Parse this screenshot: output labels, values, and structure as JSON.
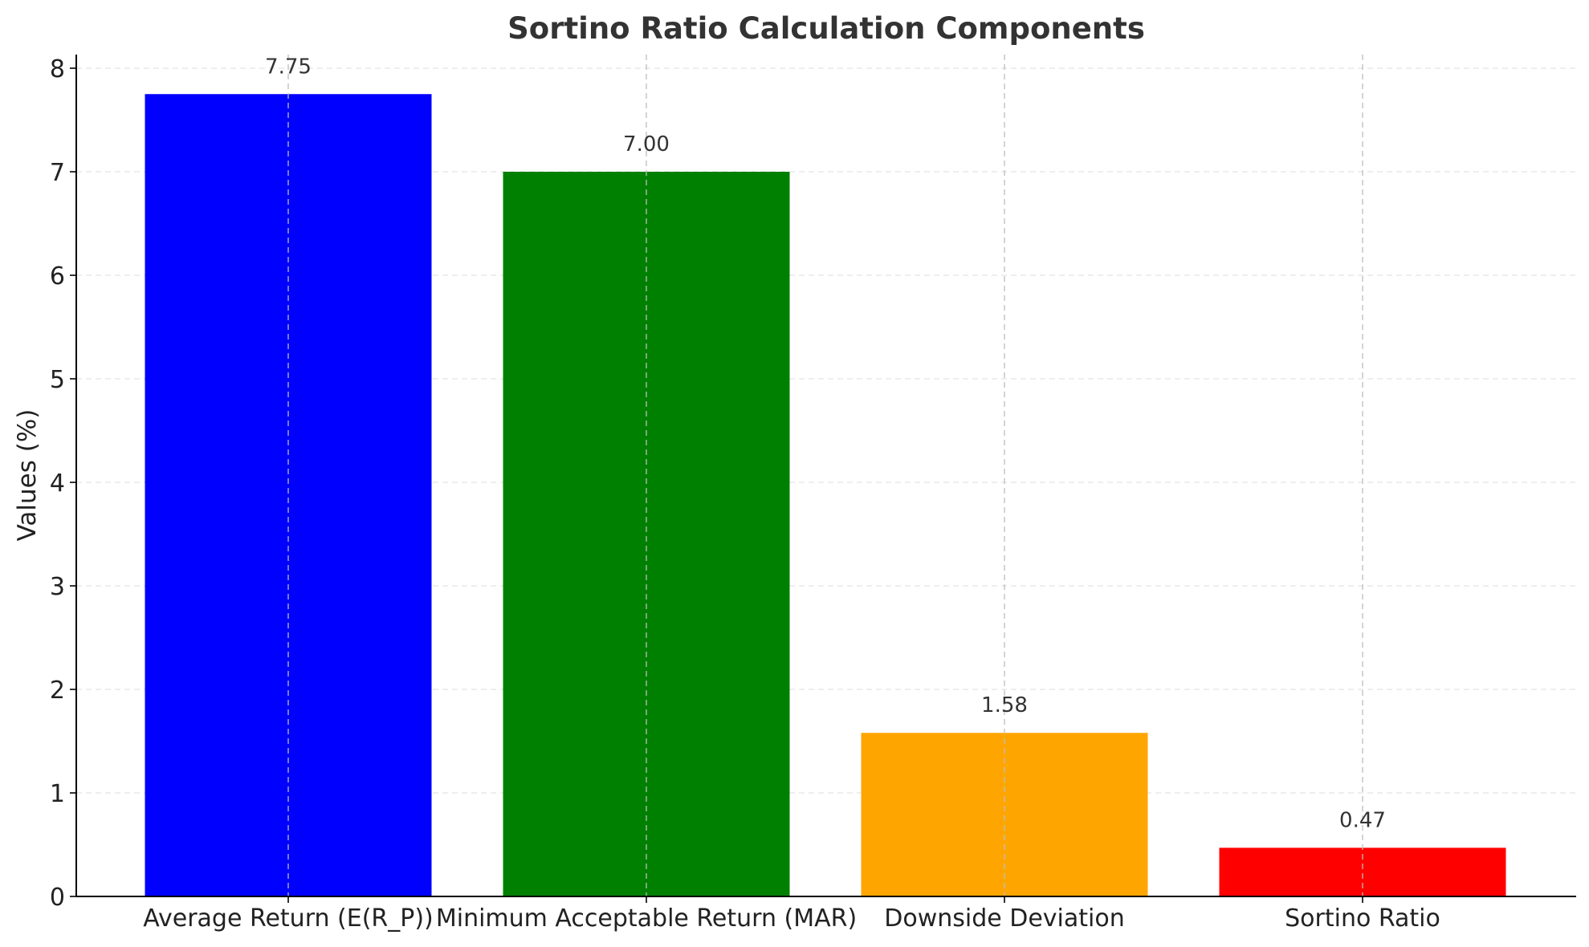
{
  "chart_data": {
    "type": "bar",
    "title": "Sortino Ratio Calculation Components",
    "xlabel": "",
    "ylabel": "Values (%)",
    "categories": [
      "Average Return (E(R_P))",
      "Minimum Acceptable Return (MAR)",
      "Downside Deviation",
      "Sortino Ratio"
    ],
    "values": [
      7.75,
      7.0,
      1.58,
      0.47
    ],
    "value_labels": [
      "7.75",
      "7.00",
      "1.58",
      "0.47"
    ],
    "colors": [
      "#0000ff",
      "#008000",
      "#ffa500",
      "#ff0000"
    ],
    "ylim": [
      0,
      8.1
    ],
    "yticks": [
      0,
      1,
      2,
      3,
      4,
      5,
      6,
      7,
      8
    ],
    "ytick_labels": [
      "0",
      "1",
      "2",
      "3",
      "4",
      "5",
      "6",
      "7",
      "8"
    ],
    "grid": true,
    "legend": false
  }
}
